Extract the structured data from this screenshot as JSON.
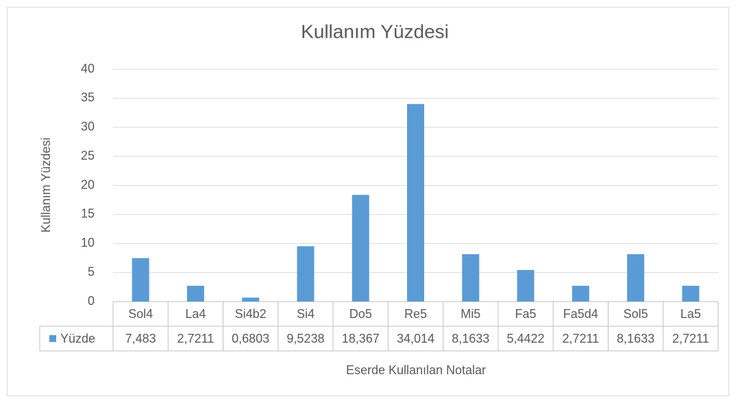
{
  "chart_data": {
    "type": "bar",
    "title": "Kullanım Yüzdesi",
    "x_label": "Eserde Kullanılan Notalar",
    "y_label": "Kullanım Yüzdesi",
    "categories": [
      "Sol4",
      "La4",
      "Si4b2",
      "Si4",
      "Do5",
      "Re5",
      "Mi5",
      "Fa5",
      "Fa5d4",
      "Sol5",
      "La5"
    ],
    "series": [
      {
        "name": "Yüzde",
        "color": "#5b9bd5",
        "values": [
          7.483,
          2.7211,
          0.6803,
          9.5238,
          18.367,
          34.014,
          8.1633,
          5.4422,
          2.7211,
          8.1633,
          2.7211
        ],
        "value_labels": [
          "7,483",
          "2,7211",
          "0,6803",
          "9,5238",
          "18,367",
          "34,014",
          "8,1633",
          "5,4422",
          "2,7211",
          "8,1633",
          "2,7211"
        ]
      }
    ],
    "ylim": [
      0,
      40
    ],
    "yticks": [
      0,
      5,
      10,
      15,
      20,
      25,
      30,
      35,
      40
    ],
    "grid": true
  }
}
